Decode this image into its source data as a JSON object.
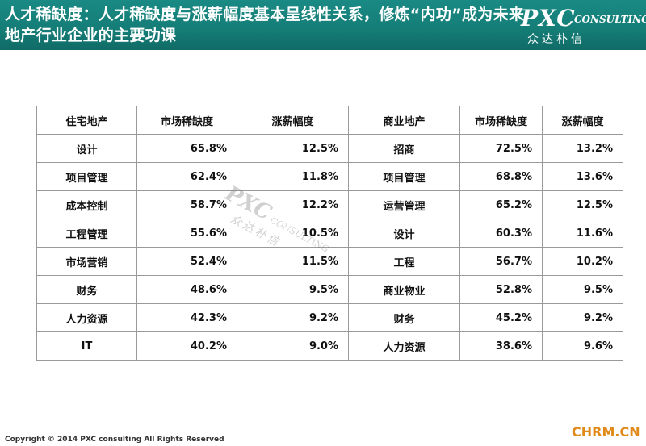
{
  "header": {
    "title": "人才稀缺度：人才稀缺度与涨薪幅度基本呈线性关系，修炼“内功”成为未来地产行业企业的主要功课",
    "logo_brand": "PXC",
    "logo_tagline": "CONSULTING",
    "logo_cn": "众达朴信"
  },
  "table": {
    "headers": [
      "住宅地产",
      "市场稀缺度",
      "涨薪幅度",
      "商业地产",
      "市场稀缺度",
      "涨薪幅度"
    ],
    "rows": [
      [
        "设计",
        "65.8%",
        "12.5%",
        "招商",
        "72.5%",
        "13.2%"
      ],
      [
        "项目管理",
        "62.4%",
        "11.8%",
        "项目管理",
        "68.8%",
        "13.6%"
      ],
      [
        "成本控制",
        "58.7%",
        "12.2%",
        "运营管理",
        "65.2%",
        "12.5%"
      ],
      [
        "工程管理",
        "55.6%",
        "10.5%",
        "设计",
        "60.3%",
        "11.6%"
      ],
      [
        "市场营销",
        "52.4%",
        "11.5%",
        "工程",
        "56.7%",
        "10.2%"
      ],
      [
        "财务",
        "48.6%",
        "9.5%",
        "商业物业",
        "52.8%",
        "9.5%"
      ],
      [
        "人力资源",
        "42.3%",
        "9.2%",
        "财务",
        "45.2%",
        "9.2%"
      ],
      [
        "IT",
        "40.2%",
        "9.0%",
        "人力资源",
        "38.6%",
        "9.6%"
      ]
    ]
  },
  "watermark": {
    "brand": "PXC",
    "tagline": "CONSULTING",
    "cn": "众达朴信"
  },
  "footer": {
    "copyright": "Copyright © 2014  PXC consulting All Rights Reserved",
    "site": "CHRM.CN"
  },
  "colors": {
    "header_bg": "#157c76",
    "site_orange": "#e08a1a"
  }
}
